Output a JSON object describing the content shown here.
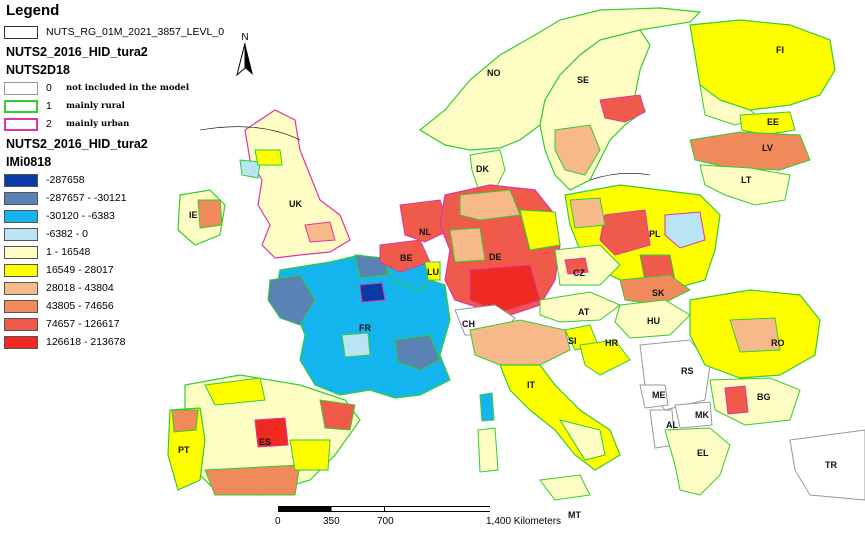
{
  "legend": {
    "title": "Legend",
    "boundary_label": "NUTS_RG_01M_2021_3857_LEVL_0",
    "layer1": "NUTS2_2016_HID_tura2",
    "nuts_field": "NUTS2D18",
    "nuts_classes": [
      {
        "code": "0",
        "label": "not included in the model",
        "color": "#ffffff",
        "border": "#999999"
      },
      {
        "code": "1",
        "label": "mainly rural",
        "color": "#ffffff",
        "border": "#33cc33"
      },
      {
        "code": "2",
        "label": "mainly urban",
        "color": "#ffffff",
        "border": "#e0359e"
      }
    ],
    "layer2": "NUTS2_2016_HID_tura2",
    "imi_field": "IMi0818",
    "imi_classes": [
      {
        "label": "-287658",
        "color": "#0a3aa5"
      },
      {
        "label": "-287657 - -30121",
        "color": "#5a82b4"
      },
      {
        "label": "-30120 - -6383",
        "color": "#14b4ee"
      },
      {
        "label": "-6382 - 0",
        "color": "#b8e4f4"
      },
      {
        "label": "1 - 16548",
        "color": "#fdfdc4"
      },
      {
        "label": "16549 - 28017",
        "color": "#ffff00"
      },
      {
        "label": "28018 - 43804",
        "color": "#f8b98a"
      },
      {
        "label": "43805 - 74656",
        "color": "#f08a5a"
      },
      {
        "label": "74657 - 126617",
        "color": "#f05a4a"
      },
      {
        "label": "126618 - 213678",
        "color": "#ee2a22"
      }
    ]
  },
  "north_arrow": {
    "label": "N"
  },
  "scale": {
    "ticks": [
      "0",
      "350",
      "700",
      "1,400 Kilometers"
    ]
  },
  "countries": [
    "NO",
    "SE",
    "FI",
    "EE",
    "LV",
    "LT",
    "DK",
    "UK",
    "IE",
    "NL",
    "BE",
    "LU",
    "DE",
    "PL",
    "CZ",
    "SK",
    "AT",
    "HU",
    "FR",
    "CH",
    "SI",
    "HR",
    "RO",
    "RS",
    "BG",
    "ME",
    "MK",
    "AL",
    "IT",
    "EL",
    "TR",
    "ES",
    "PT",
    "MT"
  ]
}
